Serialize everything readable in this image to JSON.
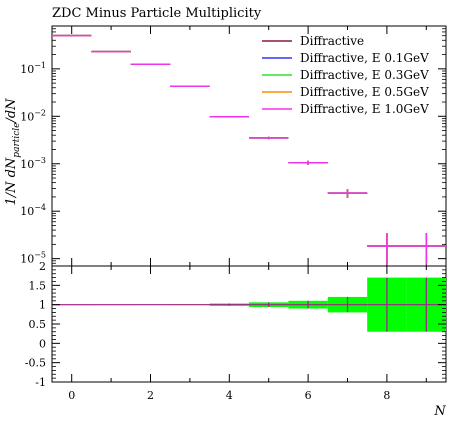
{
  "chart_data": {
    "type": "histogram",
    "title": "ZDC Minus Particle Multiplicity",
    "ylabel": "1/N dN_particle/dN",
    "ylabel_parts": {
      "lead": "1/N dN",
      "subscript": "particle",
      "tail": "/dN"
    },
    "xlabel": "N",
    "log_y": true,
    "x_ticks": [
      "0",
      "2",
      "4",
      "6",
      "8"
    ],
    "y_ticks": [
      {
        "base": "10",
        "exp": "−1"
      },
      {
        "base": "10",
        "exp": "−2"
      },
      {
        "base": "10",
        "exp": "−3"
      },
      {
        "base": "10",
        "exp": "−4"
      },
      {
        "base": "10",
        "exp": "−5"
      }
    ],
    "xlim": [
      -0.5,
      9.5
    ],
    "ylim": [
      7e-06,
      0.8
    ],
    "bins": [
      {
        "xlo": -0.5,
        "xhi": 0.5,
        "y": 0.5,
        "err": 0.003
      },
      {
        "xlo": 0.5,
        "xhi": 1.5,
        "y": 0.23,
        "err": 0.002
      },
      {
        "xlo": 1.5,
        "xhi": 2.5,
        "y": 0.125,
        "err": 0.0015
      },
      {
        "xlo": 2.5,
        "xhi": 3.5,
        "y": 0.043,
        "err": 0.0008
      },
      {
        "xlo": 3.5,
        "xhi": 4.5,
        "y": 0.0098,
        "err": 0.0003
      },
      {
        "xlo": 4.5,
        "xhi": 5.5,
        "y": 0.0035,
        "err": 0.0002
      },
      {
        "xlo": 5.5,
        "xhi": 6.5,
        "y": 0.00105,
        "err": 0.0001
      },
      {
        "xlo": 6.5,
        "xhi": 7.5,
        "y": 0.00024,
        "err": 5e-05
      },
      {
        "xlo": 7.5,
        "xhi": 8.5,
        "y": 1.85e-05,
        "errlo": 1.1e-05,
        "errhi": 1.6e-05
      },
      {
        "xlo": 8.5,
        "xhi": 9.5,
        "y": 1.85e-05,
        "errlo": 1.1e-05,
        "errhi": 1.6e-05
      }
    ],
    "series": [
      {
        "name": "Diffractive",
        "color": "#8b1a3a"
      },
      {
        "name": "Diffractive, E 0.1GeV",
        "color": "#3333ff"
      },
      {
        "name": "Diffractive, E 0.3GeV",
        "color": "#33dd33"
      },
      {
        "name": "Diffractive, E 0.5GeV",
        "color": "#ff8c00"
      },
      {
        "name": "Diffractive, E 1.0GeV",
        "color": "#ee33ee"
      }
    ],
    "legend_position": "top-right",
    "ratio": {
      "ylim": [
        -1,
        2
      ],
      "y_ticks": [
        "2",
        "1.5",
        "1",
        "0.5",
        "0",
        "-0.5",
        "-1"
      ],
      "values": [
        1,
        1,
        1,
        1,
        1,
        1,
        1,
        1,
        1,
        1
      ],
      "band": [
        {
          "lo": 0.999,
          "hi": 1.001
        },
        {
          "lo": 0.998,
          "hi": 1.002
        },
        {
          "lo": 0.995,
          "hi": 1.005
        },
        {
          "lo": 0.99,
          "hi": 1.01
        },
        {
          "lo": 0.97,
          "hi": 1.03
        },
        {
          "lo": 0.94,
          "hi": 1.06
        },
        {
          "lo": 0.9,
          "hi": 1.1
        },
        {
          "lo": 0.8,
          "hi": 1.2
        },
        {
          "lo": 0.3,
          "hi": 1.7
        },
        {
          "lo": 0.3,
          "hi": 1.7
        }
      ],
      "band_color": "#00ff00",
      "line_color": "#a0208a"
    }
  }
}
